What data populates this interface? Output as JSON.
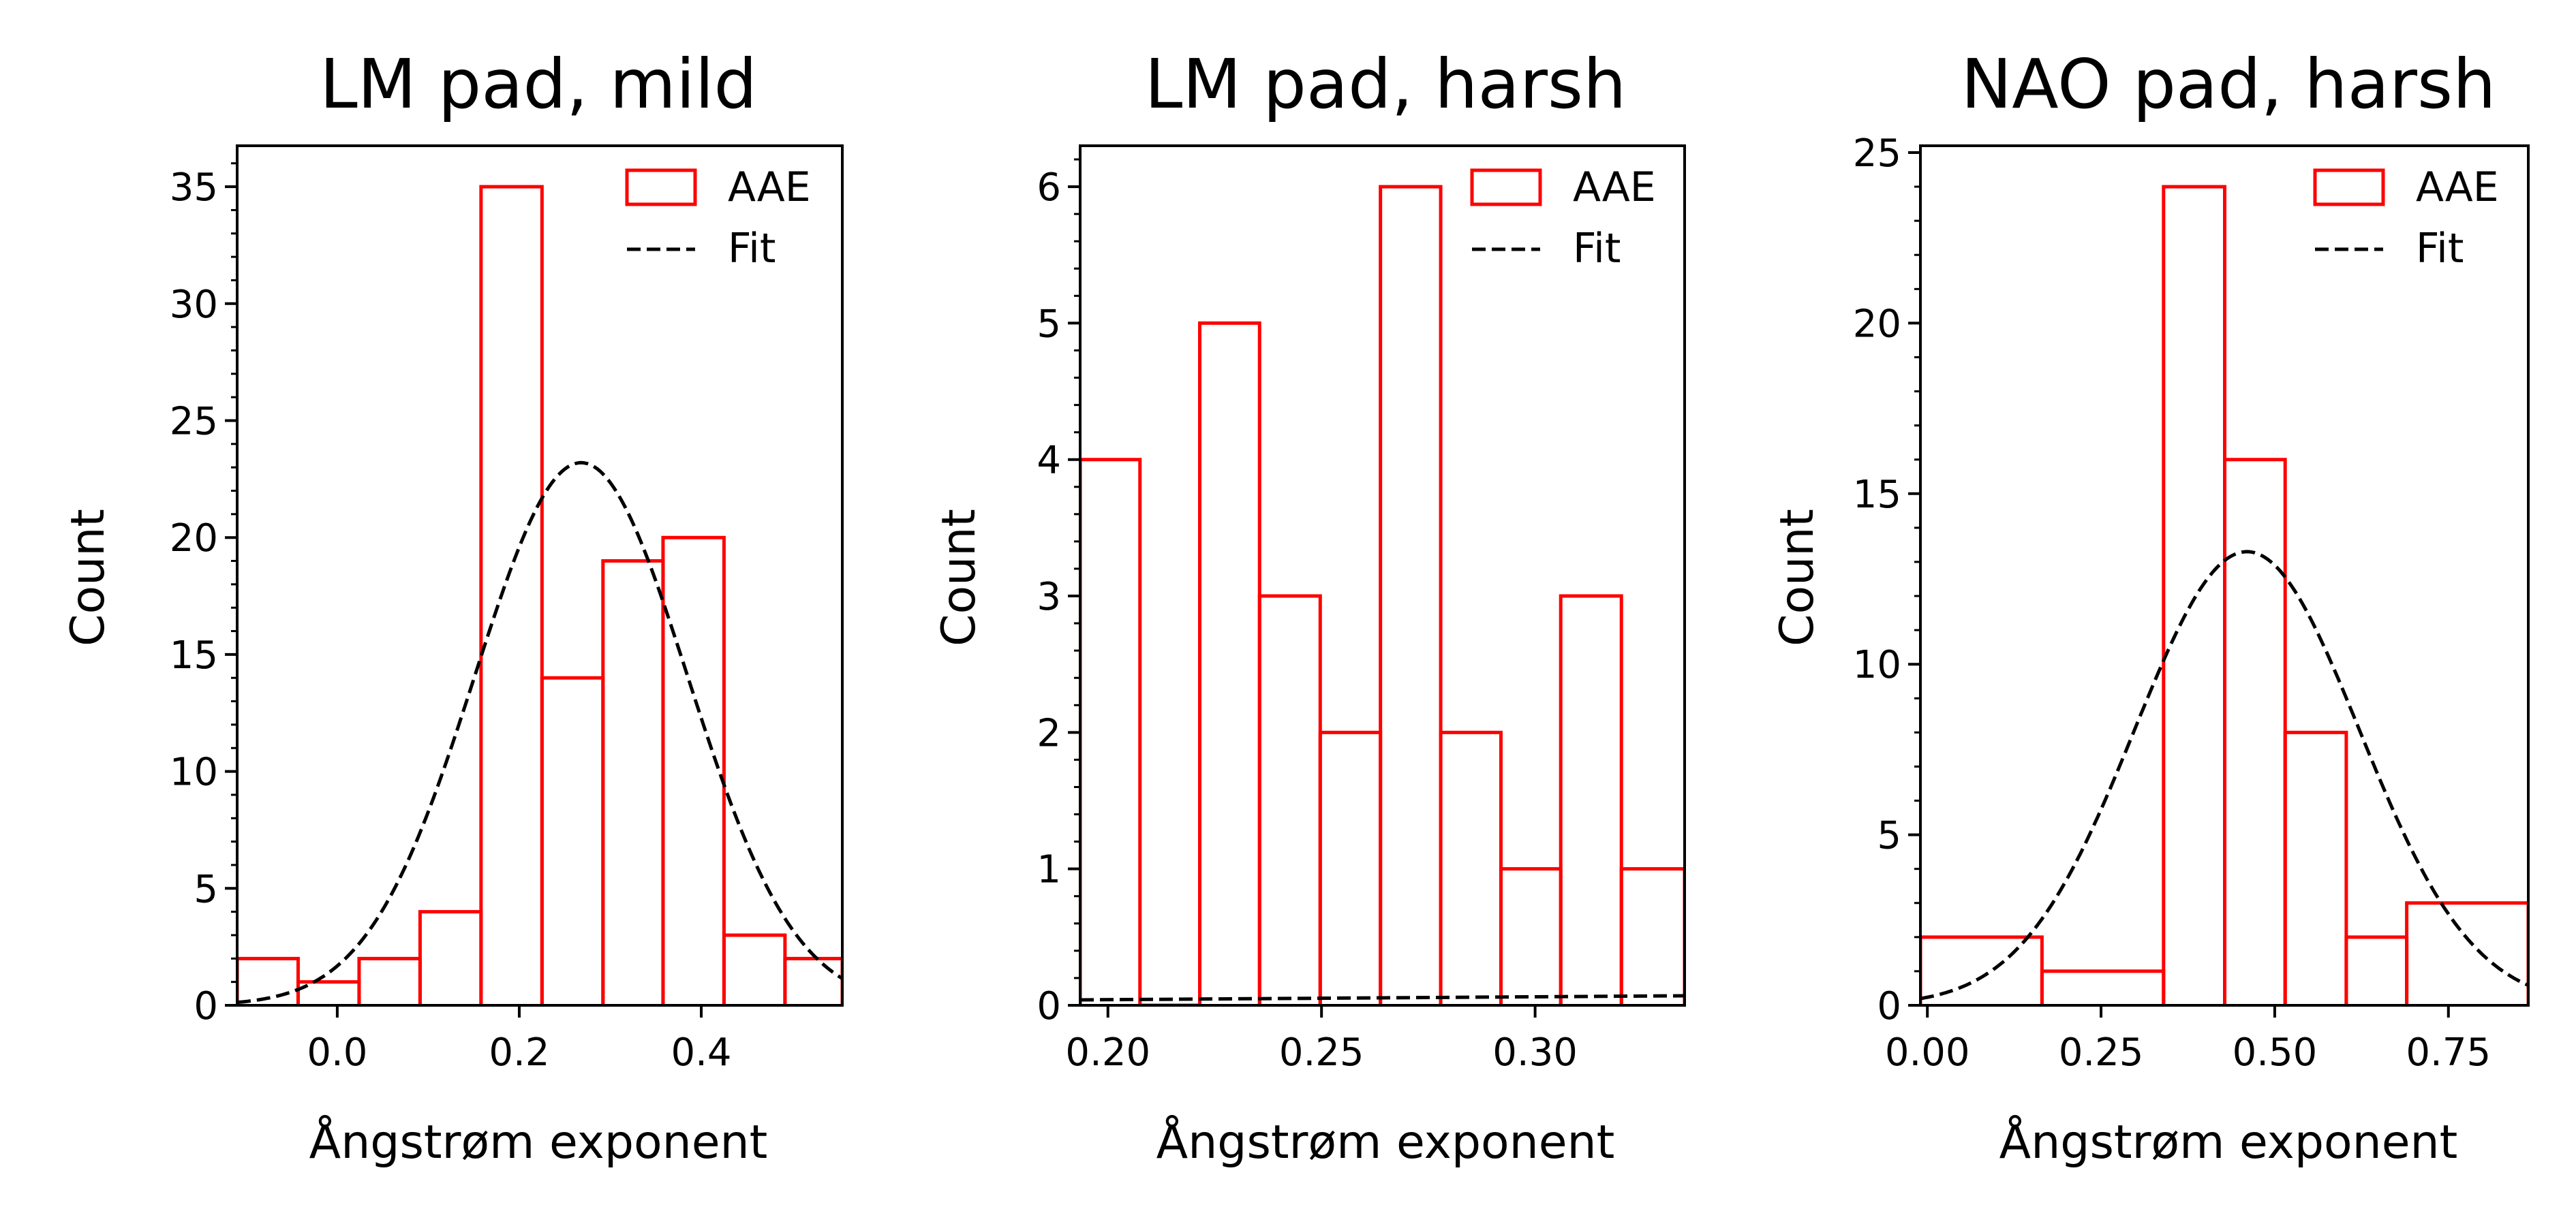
{
  "chart_data": [
    {
      "type": "histogram",
      "title": "LM pad, mild",
      "xlabel": "Ångstrøm exponent",
      "ylabel": "Count",
      "xlim": [
        -0.11,
        0.555
      ],
      "ylim": [
        0,
        36.75
      ],
      "xticks": [
        0.0,
        0.2,
        0.4
      ],
      "xtick_labels": [
        "0.0",
        "0.2",
        "0.4"
      ],
      "yticks": [
        0,
        5,
        10,
        15,
        20,
        25,
        30,
        35
      ],
      "ytick_labels": [
        "0",
        "5",
        "10",
        "15",
        "20",
        "25",
        "30",
        "35"
      ],
      "y_minor_step": 1,
      "bin_edges": [
        -0.11,
        -0.043,
        0.024,
        0.091,
        0.158,
        0.225,
        0.292,
        0.358,
        0.425,
        0.492,
        0.555
      ],
      "counts": [
        2,
        1,
        2,
        4,
        35,
        14,
        19,
        20,
        3,
        2
      ],
      "fit": {
        "mean": 0.268,
        "sigma": 0.117,
        "peak": 23.2
      },
      "legend": {
        "position": "upper right",
        "entries": [
          "AAE",
          "Fit"
        ]
      },
      "grid": false
    },
    {
      "type": "histogram",
      "title": "LM pad, harsh",
      "xlabel": "Ångstrøm exponent",
      "ylabel": "Count",
      "xlim": [
        0.1935,
        0.335
      ],
      "ylim": [
        0,
        6.3
      ],
      "xticks": [
        0.2,
        0.25,
        0.3
      ],
      "xtick_labels": [
        "0.20",
        "0.25",
        "0.30"
      ],
      "yticks": [
        0,
        1,
        2,
        3,
        4,
        5,
        6
      ],
      "ytick_labels": [
        "0",
        "1",
        "2",
        "3",
        "4",
        "5",
        "6"
      ],
      "y_minor_step": 0.2,
      "bin_edges": [
        0.1935,
        0.2075,
        0.2215,
        0.2355,
        0.2497,
        0.2638,
        0.2779,
        0.292,
        0.306,
        0.3202,
        0.335
      ],
      "counts": [
        4,
        0,
        5,
        3,
        2,
        6,
        2,
        1,
        3,
        1
      ],
      "fit": {
        "line_points": [
          [
            0.1935,
            0.04
          ],
          [
            0.335,
            0.07
          ]
        ]
      },
      "legend": {
        "position": "upper right",
        "entries": [
          "AAE",
          "Fit"
        ]
      },
      "grid": false
    },
    {
      "type": "histogram",
      "title": "NAO pad, harsh",
      "xlabel": "Ångstrøm exponent",
      "ylabel": "Count",
      "xlim": [
        -0.01,
        0.865
      ],
      "ylim": [
        0,
        25.2
      ],
      "xticks": [
        0.0,
        0.25,
        0.5,
        0.75
      ],
      "xtick_labels": [
        "0.00",
        "0.25",
        "0.50",
        "0.75"
      ],
      "yticks": [
        0,
        5,
        10,
        15,
        20,
        25
      ],
      "ytick_labels": [
        "0",
        "5",
        "10",
        "15",
        "20",
        "25"
      ],
      "y_minor_step": 1,
      "bin_edges": [
        -0.01,
        0.165,
        0.34,
        0.428,
        0.515,
        0.603,
        0.69,
        0.865
      ],
      "counts": [
        2,
        1,
        24,
        16,
        8,
        2,
        3
      ],
      "fit": {
        "mean": 0.46,
        "sigma": 0.162,
        "peak": 13.3
      },
      "legend": {
        "position": "upper right",
        "entries": [
          "AAE",
          "Fit"
        ]
      },
      "grid": false
    }
  ],
  "colors": {
    "histogram": "#ff0000",
    "fit": "#000000",
    "axes": "#000000"
  }
}
